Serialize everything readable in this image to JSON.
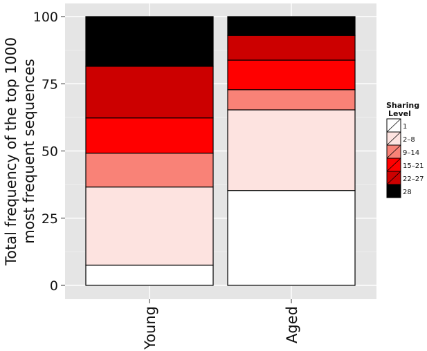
{
  "chart_data": {
    "type": "bar",
    "stacked": true,
    "title": "",
    "xlabel": "",
    "ylabel_lines": [
      "Total frequency of the top 1000",
      "most frequent sequences"
    ],
    "categories": [
      "Young",
      "Aged"
    ],
    "ylim": [
      0,
      100
    ],
    "yticks": [
      0,
      25,
      50,
      75,
      100
    ],
    "grid": true,
    "legend": {
      "title_lines": [
        "Sharing",
        "Level"
      ],
      "position": "right"
    },
    "series": [
      {
        "name": "1",
        "color": "#ffffff",
        "values": [
          7.5,
          35.3
        ]
      },
      {
        "name": "2–8",
        "color": "#fde3e0",
        "values": [
          29.1,
          30.0
        ]
      },
      {
        "name": "9–14",
        "color": "#f98277",
        "values": [
          12.6,
          7.5
        ]
      },
      {
        "name": "15–21",
        "color": "#ff0000",
        "values": [
          13.1,
          11.0
        ]
      },
      {
        "name": "22–27",
        "color": "#cc0000",
        "values": [
          19.2,
          9.2
        ]
      },
      {
        "name": "28",
        "color": "#000000",
        "values": [
          18.5,
          7.0
        ]
      }
    ]
  }
}
